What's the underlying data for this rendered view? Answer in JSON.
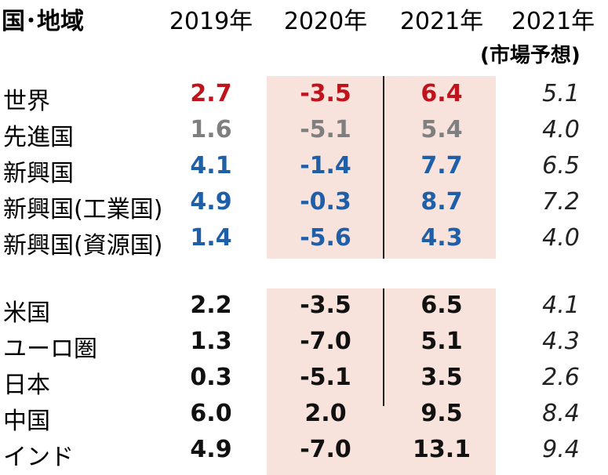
{
  "header": {
    "region": "国･地域",
    "y2019": "2019年",
    "y2020": "2020年",
    "y2021": "2021年",
    "y2021f": "2021年",
    "forecast_note": "(市場予想)"
  },
  "group1": [
    {
      "label": "世界",
      "v2019": "2.7",
      "v2020": "-3.5",
      "v2021": "6.4",
      "f2021": "5.1",
      "color": "#c0141c"
    },
    {
      "label": "先進国",
      "v2019": "1.6",
      "v2020": "-5.1",
      "v2021": "5.4",
      "f2021": "4.0",
      "color": "#7f7f7f"
    },
    {
      "label": "新興国",
      "v2019": "4.1",
      "v2020": "-1.4",
      "v2021": "7.7",
      "f2021": "6.5",
      "color": "#1f5fa8"
    },
    {
      "label": "新興国(工業国)",
      "v2019": "4.9",
      "v2020": "-0.3",
      "v2021": "8.7",
      "f2021": "7.2",
      "color": "#1f5fa8"
    },
    {
      "label": "新興国(資源国)",
      "v2019": "1.4",
      "v2020": "-5.6",
      "v2021": "4.3",
      "f2021": "4.0",
      "color": "#1f5fa8"
    }
  ],
  "group2": [
    {
      "label": "米国",
      "v2019": "2.2",
      "v2020": "-3.5",
      "v2021": "6.5",
      "f2021": "4.1",
      "color": "#111111"
    },
    {
      "label": "ユーロ圏",
      "v2019": "1.3",
      "v2020": "-7.0",
      "v2021": "5.1",
      "f2021": "4.3",
      "color": "#111111"
    },
    {
      "label": "日本",
      "v2019": "0.3",
      "v2020": "-5.1",
      "v2021": "3.5",
      "f2021": "2.6",
      "color": "#111111"
    },
    {
      "label": "中国",
      "v2019": "6.0",
      "v2020": "2.0",
      "v2021": "9.5",
      "f2021": "8.4",
      "color": "#111111"
    },
    {
      "label": "インド",
      "v2019": "4.9",
      "v2020": "-7.0",
      "v2021": "13.1",
      "f2021": "9.4",
      "color": "#111111"
    }
  ],
  "colors": {
    "band": "#f8e2dc",
    "red": "#c0141c",
    "gray": "#7f7f7f",
    "blue": "#1f5fa8"
  }
}
